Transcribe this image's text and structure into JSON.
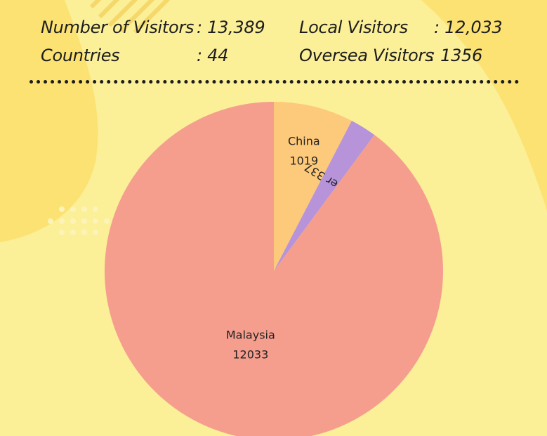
{
  "stats": {
    "visitors_label": "Number of Visitors",
    "visitors_value": ": 13,389",
    "countries_label": "Countries",
    "countries_value": ": 44",
    "local_label": "Local Visitors",
    "local_value": ": 12,033",
    "oversea_label": "Oversea Visitors",
    "oversea_value": ": 1356"
  },
  "colors": {
    "background": "#fbef98",
    "blob": "#fbe273",
    "malaysia": "#f59e8e",
    "china": "#fdc97a",
    "other": "#b793da"
  },
  "chart_data": {
    "type": "pie",
    "title": "",
    "slices": [
      {
        "label": "China",
        "value": 1019,
        "color": "#fdc97a"
      },
      {
        "label": "Other",
        "value": 337,
        "color": "#b793da"
      },
      {
        "label": "Malaysia",
        "value": 12033,
        "color": "#f59e8e"
      }
    ],
    "legend": "none",
    "start_angle": "12 o'clock, clockwise"
  }
}
